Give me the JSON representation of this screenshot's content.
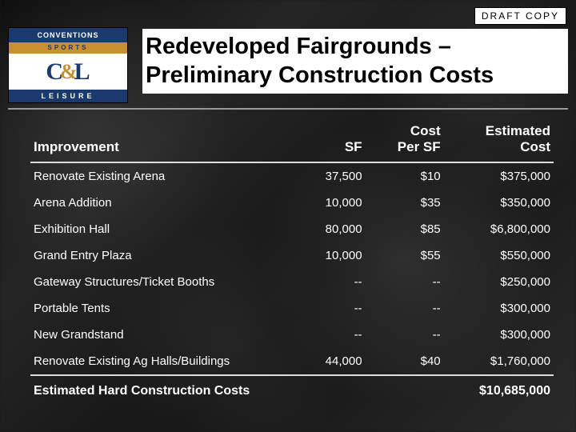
{
  "badge": "DRAFT COPY",
  "logo": {
    "line1": "CONVENTIONS",
    "line2": "SPORTS",
    "letters_left": "C",
    "letters_amp": "&",
    "letters_right": "L",
    "line3": "LEISURE",
    "border_color": "#000000",
    "bg_color": "#ffffff",
    "band_color": "#1a3a6e",
    "accent_color": "#c89030"
  },
  "title_line1": "Redeveloped Fairgrounds –",
  "title_line2": "Preliminary Construction Costs",
  "table": {
    "columns": [
      {
        "key": "improvement",
        "label": "Improvement",
        "align": "left"
      },
      {
        "key": "sf",
        "label": "SF",
        "align": "right"
      },
      {
        "key": "cost_per_sf",
        "label_line1": "Cost",
        "label_line2": "Per SF",
        "align": "right"
      },
      {
        "key": "est_cost",
        "label_line1": "Estimated",
        "label_line2": "Cost",
        "align": "right"
      }
    ],
    "rows": [
      {
        "improvement": "Renovate Existing Arena",
        "sf": "37,500",
        "cost_per_sf": "$10",
        "est_cost": "$375,000"
      },
      {
        "improvement": "Arena Addition",
        "sf": "10,000",
        "cost_per_sf": "$35",
        "est_cost": "$350,000"
      },
      {
        "improvement": "Exhibition Hall",
        "sf": "80,000",
        "cost_per_sf": "$85",
        "est_cost": "$6,800,000"
      },
      {
        "improvement": "Grand Entry Plaza",
        "sf": "10,000",
        "cost_per_sf": "$55",
        "est_cost": "$550,000"
      },
      {
        "improvement": "Gateway Structures/Ticket Booths",
        "sf": "--",
        "cost_per_sf": "--",
        "est_cost": "$250,000"
      },
      {
        "improvement": "Portable Tents",
        "sf": "--",
        "cost_per_sf": "--",
        "est_cost": "$300,000"
      },
      {
        "improvement": "New Grandstand",
        "sf": "--",
        "cost_per_sf": "--",
        "est_cost": "$300,000"
      },
      {
        "improvement": "Renovate Existing Ag Halls/Buildings",
        "sf": "44,000",
        "cost_per_sf": "$40",
        "est_cost": "$1,760,000"
      }
    ],
    "footer": {
      "label": "Estimated Hard Construction Costs",
      "sf": "",
      "cost_per_sf": "",
      "est_cost": "$10,685,000"
    },
    "text_color": "#ffffff",
    "rule_color": "#dddddd",
    "header_fontsize": 17,
    "body_fontsize": 15,
    "footer_fontsize": 16
  },
  "background": {
    "base_color": "#1a1a1a"
  }
}
